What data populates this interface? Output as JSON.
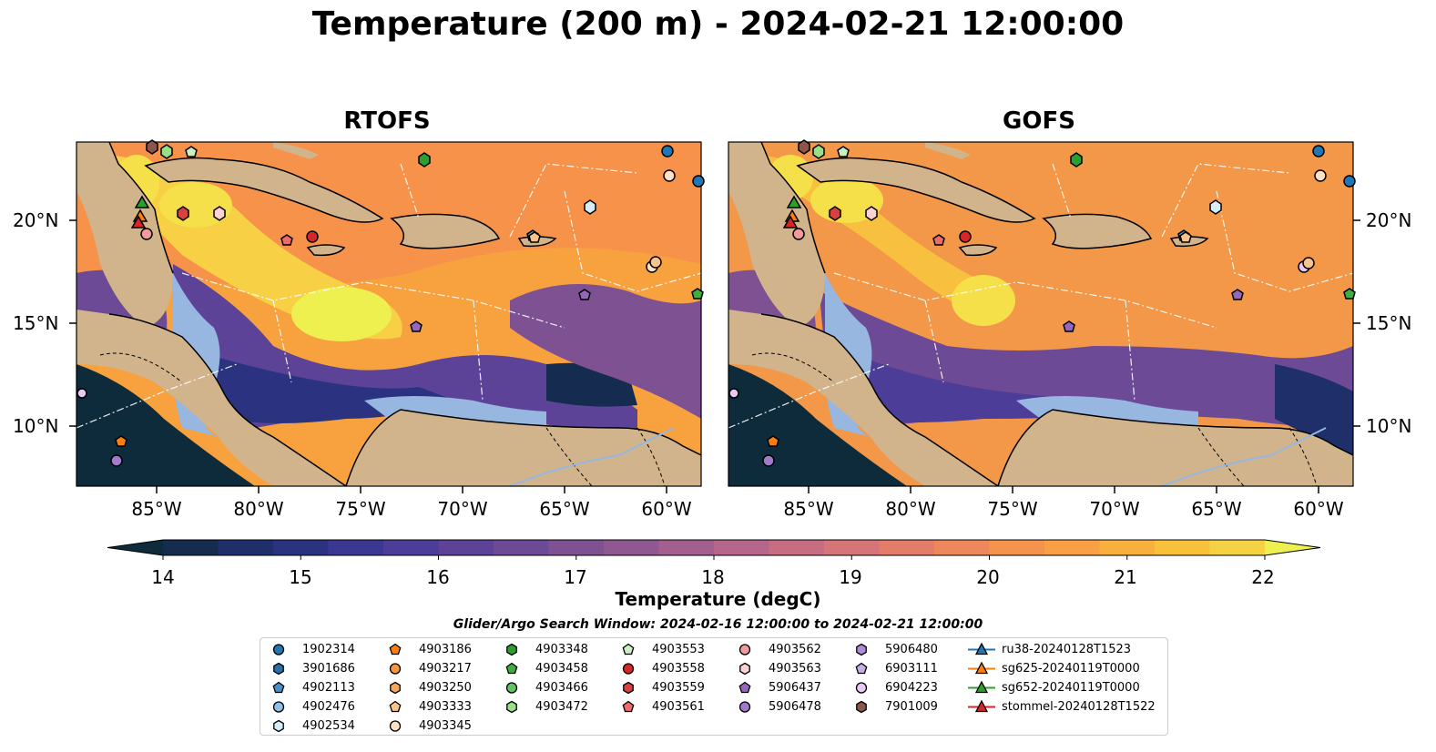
{
  "title": "Temperature (200 m) - 2024-02-21 12:00:00",
  "panels": [
    {
      "title": "RTOFS"
    },
    {
      "title": "GOFS"
    }
  ],
  "axes": {
    "lat_labels": [
      "20°N",
      "15°N",
      "10°N"
    ],
    "lon_labels": [
      "85°W",
      "80°W",
      "75°W",
      "70°W",
      "65°W",
      "60°W"
    ]
  },
  "colorbar": {
    "ticks": [
      "14",
      "15",
      "16",
      "17",
      "18",
      "19",
      "20",
      "21",
      "22"
    ],
    "label": "Temperature (degC)",
    "colors": [
      "#0d2b3a",
      "#162b50",
      "#1e2f6a",
      "#2b3380",
      "#3b3893",
      "#4c3d98",
      "#5c4398",
      "#6d4a96",
      "#7e5193",
      "#905891",
      "#a35f8e",
      "#b5668a",
      "#c66d82",
      "#d67577",
      "#e37d6a",
      "#ee875c",
      "#f5924e",
      "#f8a043",
      "#f9af3c",
      "#f9c03c",
      "#f5d243",
      "#eef04f"
    ]
  },
  "search_window": "Glider/Argo Search Window: 2024-02-16 12:00:00 to 2024-02-21 12:00:00",
  "legend": [
    {
      "label": "1902314",
      "marker": "circle",
      "color": "#1f77b4"
    },
    {
      "label": "3901686",
      "marker": "hexagon",
      "color": "#2a6fa8"
    },
    {
      "label": "4902113",
      "marker": "pentagon",
      "color": "#4a90c8"
    },
    {
      "label": "4902476",
      "marker": "circle",
      "color": "#8fc0e6"
    },
    {
      "label": "4902534",
      "marker": "hexagon",
      "color": "#d6ecf8"
    },
    {
      "label": "4903186",
      "marker": "pentagon",
      "color": "#ff7f0e"
    },
    {
      "label": "4903217",
      "marker": "circle",
      "color": "#f59642"
    },
    {
      "label": "4903250",
      "marker": "hexagon",
      "color": "#f5a85a"
    },
    {
      "label": "4903333",
      "marker": "pentagon",
      "color": "#f8c48c"
    },
    {
      "label": "4903345",
      "marker": "circle",
      "color": "#fde1c4"
    },
    {
      "label": "4903348",
      "marker": "hexagon",
      "color": "#2ca02c"
    },
    {
      "label": "4903458",
      "marker": "pentagon",
      "color": "#3fae3f"
    },
    {
      "label": "4903466",
      "marker": "circle",
      "color": "#63c263"
    },
    {
      "label": "4903472",
      "marker": "hexagon",
      "color": "#98df8a"
    },
    {
      "label": "4903553",
      "marker": "pentagon",
      "color": "#c8f0c0"
    },
    {
      "label": "4903558",
      "marker": "circle",
      "color": "#d62728"
    },
    {
      "label": "4903559",
      "marker": "hexagon",
      "color": "#d94040"
    },
    {
      "label": "4903561",
      "marker": "pentagon",
      "color": "#ee6b6b"
    },
    {
      "label": "4903562",
      "marker": "circle",
      "color": "#f59a9a"
    },
    {
      "label": "4903563",
      "marker": "hexagon",
      "color": "#fcd2d2"
    },
    {
      "label": "5906437",
      "marker": "pentagon",
      "color": "#9467bd"
    },
    {
      "label": "5906478",
      "marker": "circle",
      "color": "#a07bcc"
    },
    {
      "label": "5906480",
      "marker": "hexagon",
      "color": "#b08cd8"
    },
    {
      "label": "6903111",
      "marker": "pentagon",
      "color": "#c5b0e6"
    },
    {
      "label": "6904223",
      "marker": "circle",
      "color": "#e8c8f4"
    },
    {
      "label": "7901009",
      "marker": "hexagon",
      "color": "#8c564b"
    },
    {
      "label": "ru38-20240128T1523",
      "marker": "triangle-line",
      "color": "#1f77b4"
    },
    {
      "label": "sg625-20240119T0000",
      "marker": "triangle-line",
      "color": "#ff7f0e"
    },
    {
      "label": "sg652-20240119T0000",
      "marker": "triangle-line",
      "color": "#2ca02c"
    },
    {
      "label": "stommel-20240128T1522",
      "marker": "triangle-line",
      "color": "#d62728"
    }
  ],
  "colors": {
    "land": "#d2b48c",
    "shallow_water": "#97b6e0",
    "deep": "#0d2b3a"
  }
}
